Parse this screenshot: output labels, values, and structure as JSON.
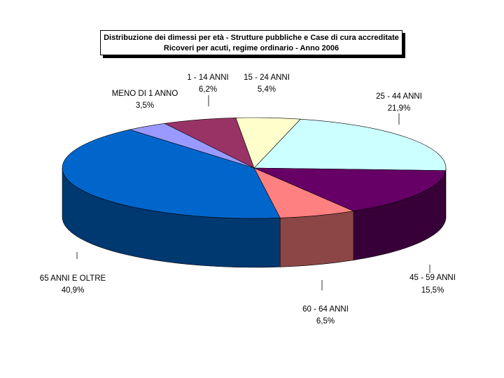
{
  "chart_data": {
    "type": "pie",
    "title": "Distribuzione dei dimessi per età - Strutture pubbliche e Case di cura accreditate",
    "subtitle": "Ricoveri per acuti, regime ordinario - Anno 2006",
    "three_d": true,
    "legend": "none",
    "slices": [
      {
        "label": "25 - 44 ANNI",
        "value_text": "21,9%",
        "value": 21.9,
        "color": "#CCFFFF"
      },
      {
        "label": "45 - 59 ANNI",
        "value_text": "15,5%",
        "value": 15.5,
        "color": "#660066"
      },
      {
        "label": "60 - 64 ANNI",
        "value_text": "6,5%",
        "value": 6.5,
        "color": "#FF8080"
      },
      {
        "label": "65 ANNI E OLTRE",
        "value_text": "40,9%",
        "value": 40.9,
        "color": "#0066CC"
      },
      {
        "label": "MENO DI 1 ANNO",
        "value_text": "3,5%",
        "value": 3.5,
        "color": "#9999FF"
      },
      {
        "label": "1 - 14 ANNI",
        "value_text": "6,2%",
        "value": 6.2,
        "color": "#993366"
      },
      {
        "label": "15 - 24 ANNI",
        "value_text": "5,4%",
        "value": 5.4,
        "color": "#FFFFCC"
      }
    ]
  }
}
